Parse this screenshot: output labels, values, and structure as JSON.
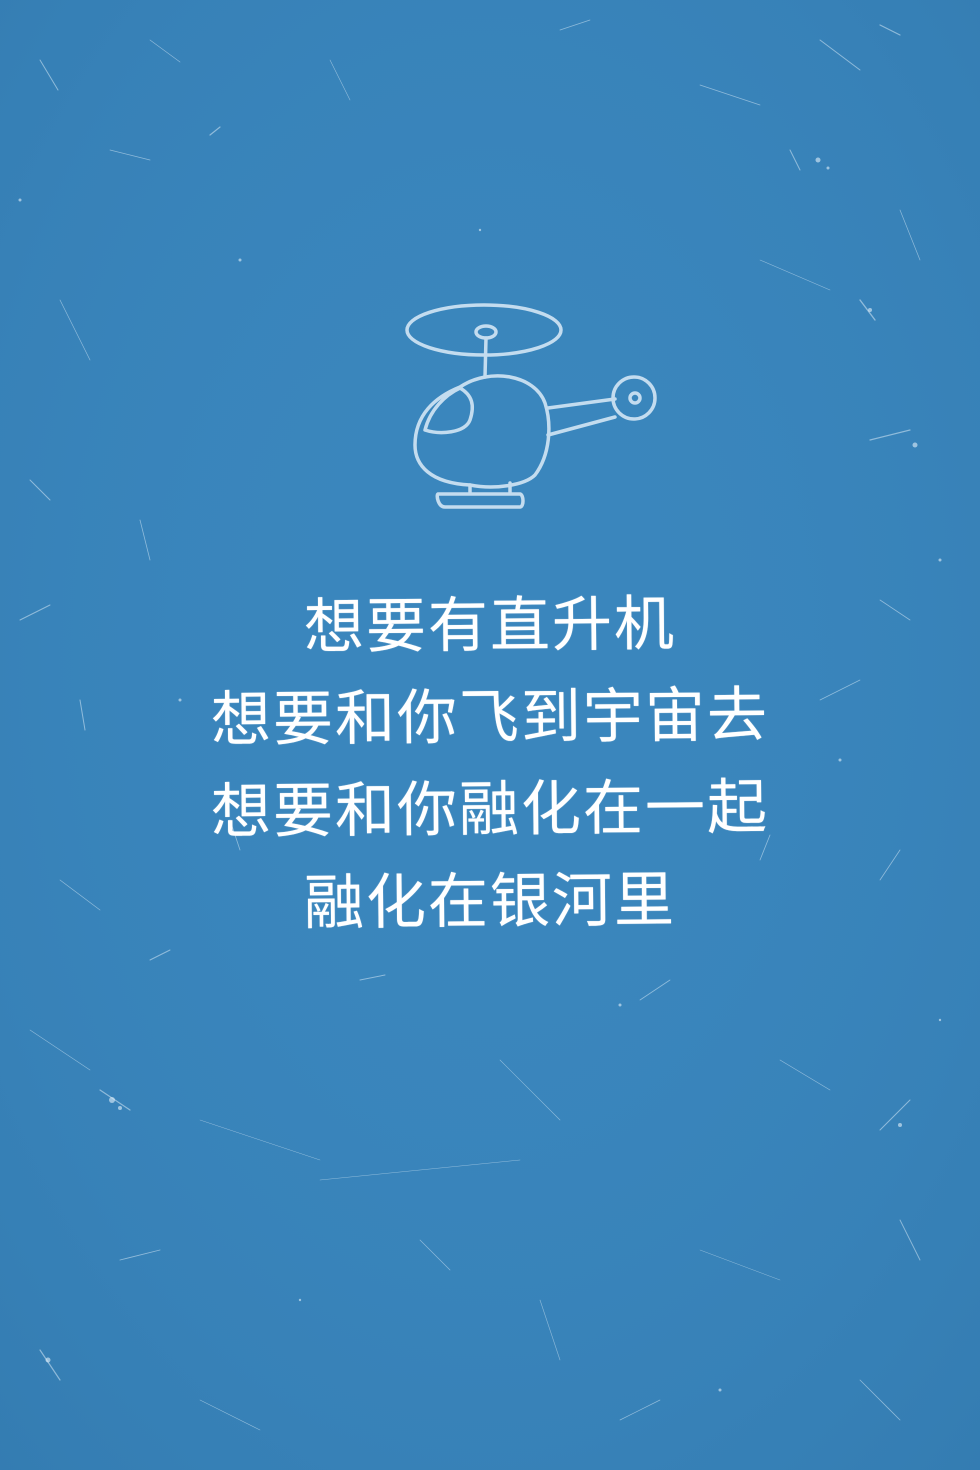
{
  "background": {
    "color": "#3a86bd",
    "texture": "scratched-chalkboard"
  },
  "illustration": {
    "icon": "helicopter-icon",
    "line_color": "#c3dcef"
  },
  "lyrics": {
    "text_color": "#ffffff",
    "lines": [
      "想要有直升机",
      "想要和你飞到宇宙去",
      "想要和你融化在一起",
      "融化在银河里"
    ]
  }
}
